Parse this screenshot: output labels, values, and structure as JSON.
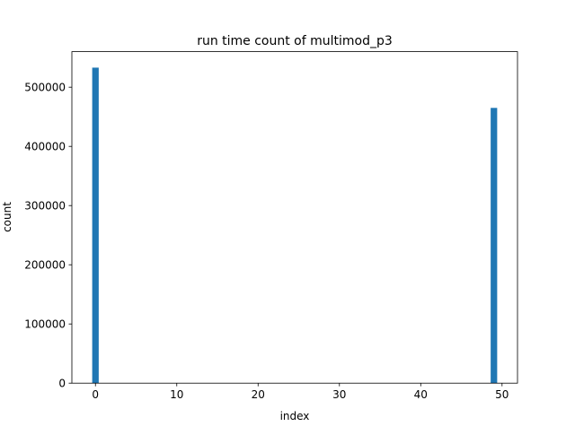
{
  "chart_data": {
    "type": "bar",
    "title": "run time count of multimod_p3",
    "xlabel": "index",
    "ylabel": "count",
    "xlim": [
      -2.9,
      51.9
    ],
    "ylim": [
      0,
      560000
    ],
    "x_ticks": [
      0,
      10,
      20,
      30,
      40,
      50
    ],
    "y_ticks": [
      0,
      100000,
      200000,
      300000,
      400000,
      500000
    ],
    "bar_width": 0.8,
    "bar_color": "#1f77b4",
    "grid": false,
    "legend": "none",
    "bars": [
      {
        "x": 0,
        "value": 533000
      },
      {
        "x": 49,
        "value": 465000
      }
    ]
  }
}
